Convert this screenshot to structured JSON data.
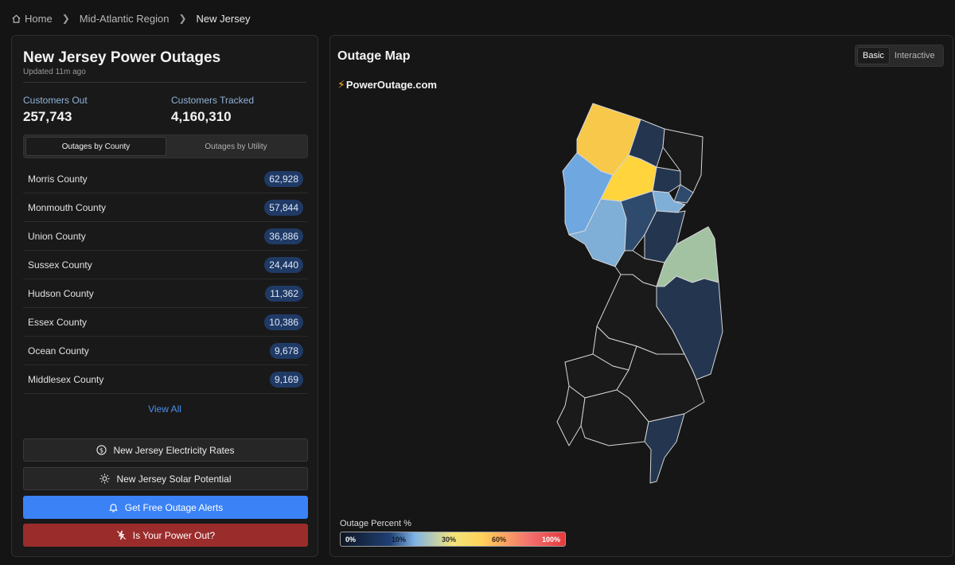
{
  "breadcrumb": {
    "home": "Home",
    "region": "Mid-Atlantic Region",
    "current": "New Jersey"
  },
  "summary": {
    "title": "New Jersey Power Outages",
    "updated": "Updated 11m ago",
    "customers_out_label": "Customers Out",
    "customers_out": "257,743",
    "customers_tracked_label": "Customers Tracked",
    "customers_tracked": "4,160,310"
  },
  "tabs": [
    "Outages by County",
    "Outages by Utility"
  ],
  "counties": [
    {
      "name": "Morris County",
      "outages": "62,928"
    },
    {
      "name": "Monmouth County",
      "outages": "57,844"
    },
    {
      "name": "Union County",
      "outages": "36,886"
    },
    {
      "name": "Sussex County",
      "outages": "24,440"
    },
    {
      "name": "Hudson County",
      "outages": "11,362"
    },
    {
      "name": "Essex County",
      "outages": "10,386"
    },
    {
      "name": "Ocean County",
      "outages": "9,678"
    },
    {
      "name": "Middlesex County",
      "outages": "9,169"
    }
  ],
  "view_all": "View All",
  "actions": {
    "rates": "New Jersey Electricity Rates",
    "solar": "New Jersey Solar Potential",
    "alerts": "Get Free Outage Alerts",
    "power_out": "Is Your Power Out?"
  },
  "map": {
    "title": "Outage Map",
    "toggle": [
      "Basic",
      "Interactive"
    ],
    "logo": "PowerOutage.com",
    "legend_title": "Outage Percent %",
    "legend_ticks": [
      "0%",
      "10%",
      "30%",
      "60%",
      "100%"
    ]
  },
  "colors": {
    "yellow_high": "#ffd43d",
    "orange_high": "#f8c84a",
    "light_blue": "#6fa8e0",
    "steel_blue": "#7faed6",
    "mid_blue": "#2e4a6d",
    "dark_navy": "#24364f",
    "sage_green": "#a3c2a2",
    "no_outage": "#1a1a1a"
  }
}
